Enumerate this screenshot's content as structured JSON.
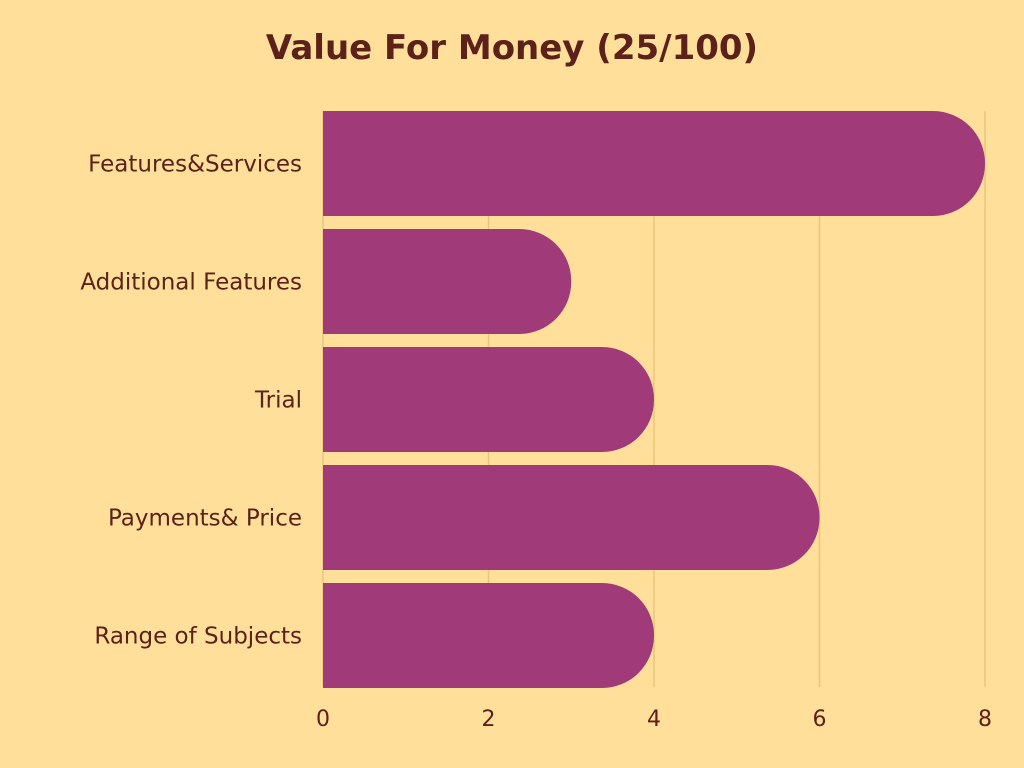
{
  "chart_data": {
    "type": "bar",
    "orientation": "horizontal",
    "title": "Value For Money (25/100)",
    "categories": [
      "Features&Services",
      "Additional Features",
      "Trial",
      "Payments& Price",
      "Range of Subjects"
    ],
    "values": [
      8,
      3,
      4,
      6,
      4
    ],
    "xlim": [
      0,
      8
    ],
    "xticks": [
      "0",
      "2",
      "4",
      "6",
      "8"
    ],
    "xlabel": "",
    "ylabel": "",
    "grid": "vertical",
    "legend": "none"
  },
  "colors": {
    "background": "#FFDF99",
    "bar": "#A03A78",
    "text": "#5C2219",
    "grid": "#E8C57E"
  }
}
